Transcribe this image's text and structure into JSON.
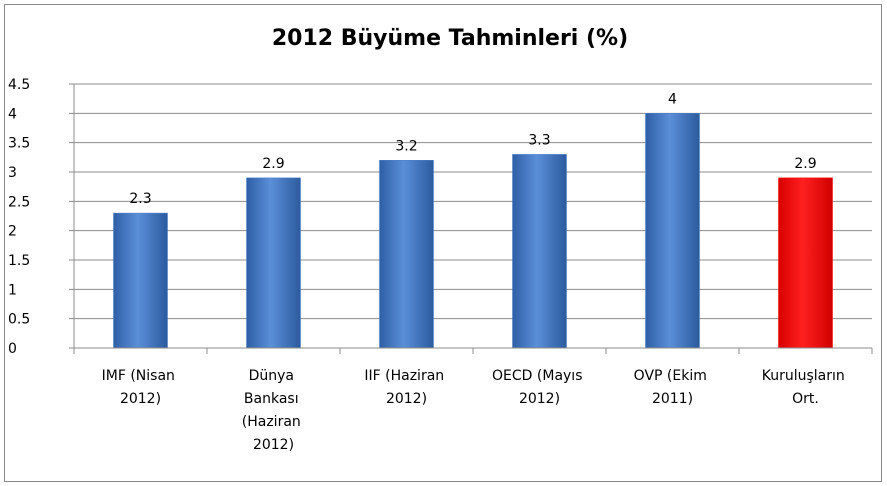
{
  "chart_data": {
    "type": "bar",
    "title": "2012 Büyüme Tahminleri (%)",
    "categories": [
      "IMF (Nisan 2012)",
      "Dünya Bankası (Haziran 2012)",
      "IIF (Haziran 2012)",
      "OECD (Mayıs 2012)",
      "OVP (Ekim 2011)",
      "Kuruluşların Ort."
    ],
    "values": [
      2.3,
      2.9,
      3.2,
      3.3,
      4,
      2.9
    ],
    "colors": [
      "#4a7ec6",
      "#4a7ec6",
      "#4a7ec6",
      "#4a7ec6",
      "#4a7ec6",
      "#ff0000"
    ],
    "ylim": [
      0,
      4.5
    ],
    "yticks": [
      0,
      0.5,
      1,
      1.5,
      2,
      2.5,
      3,
      3.5,
      4,
      4.5
    ],
    "grid": true
  }
}
